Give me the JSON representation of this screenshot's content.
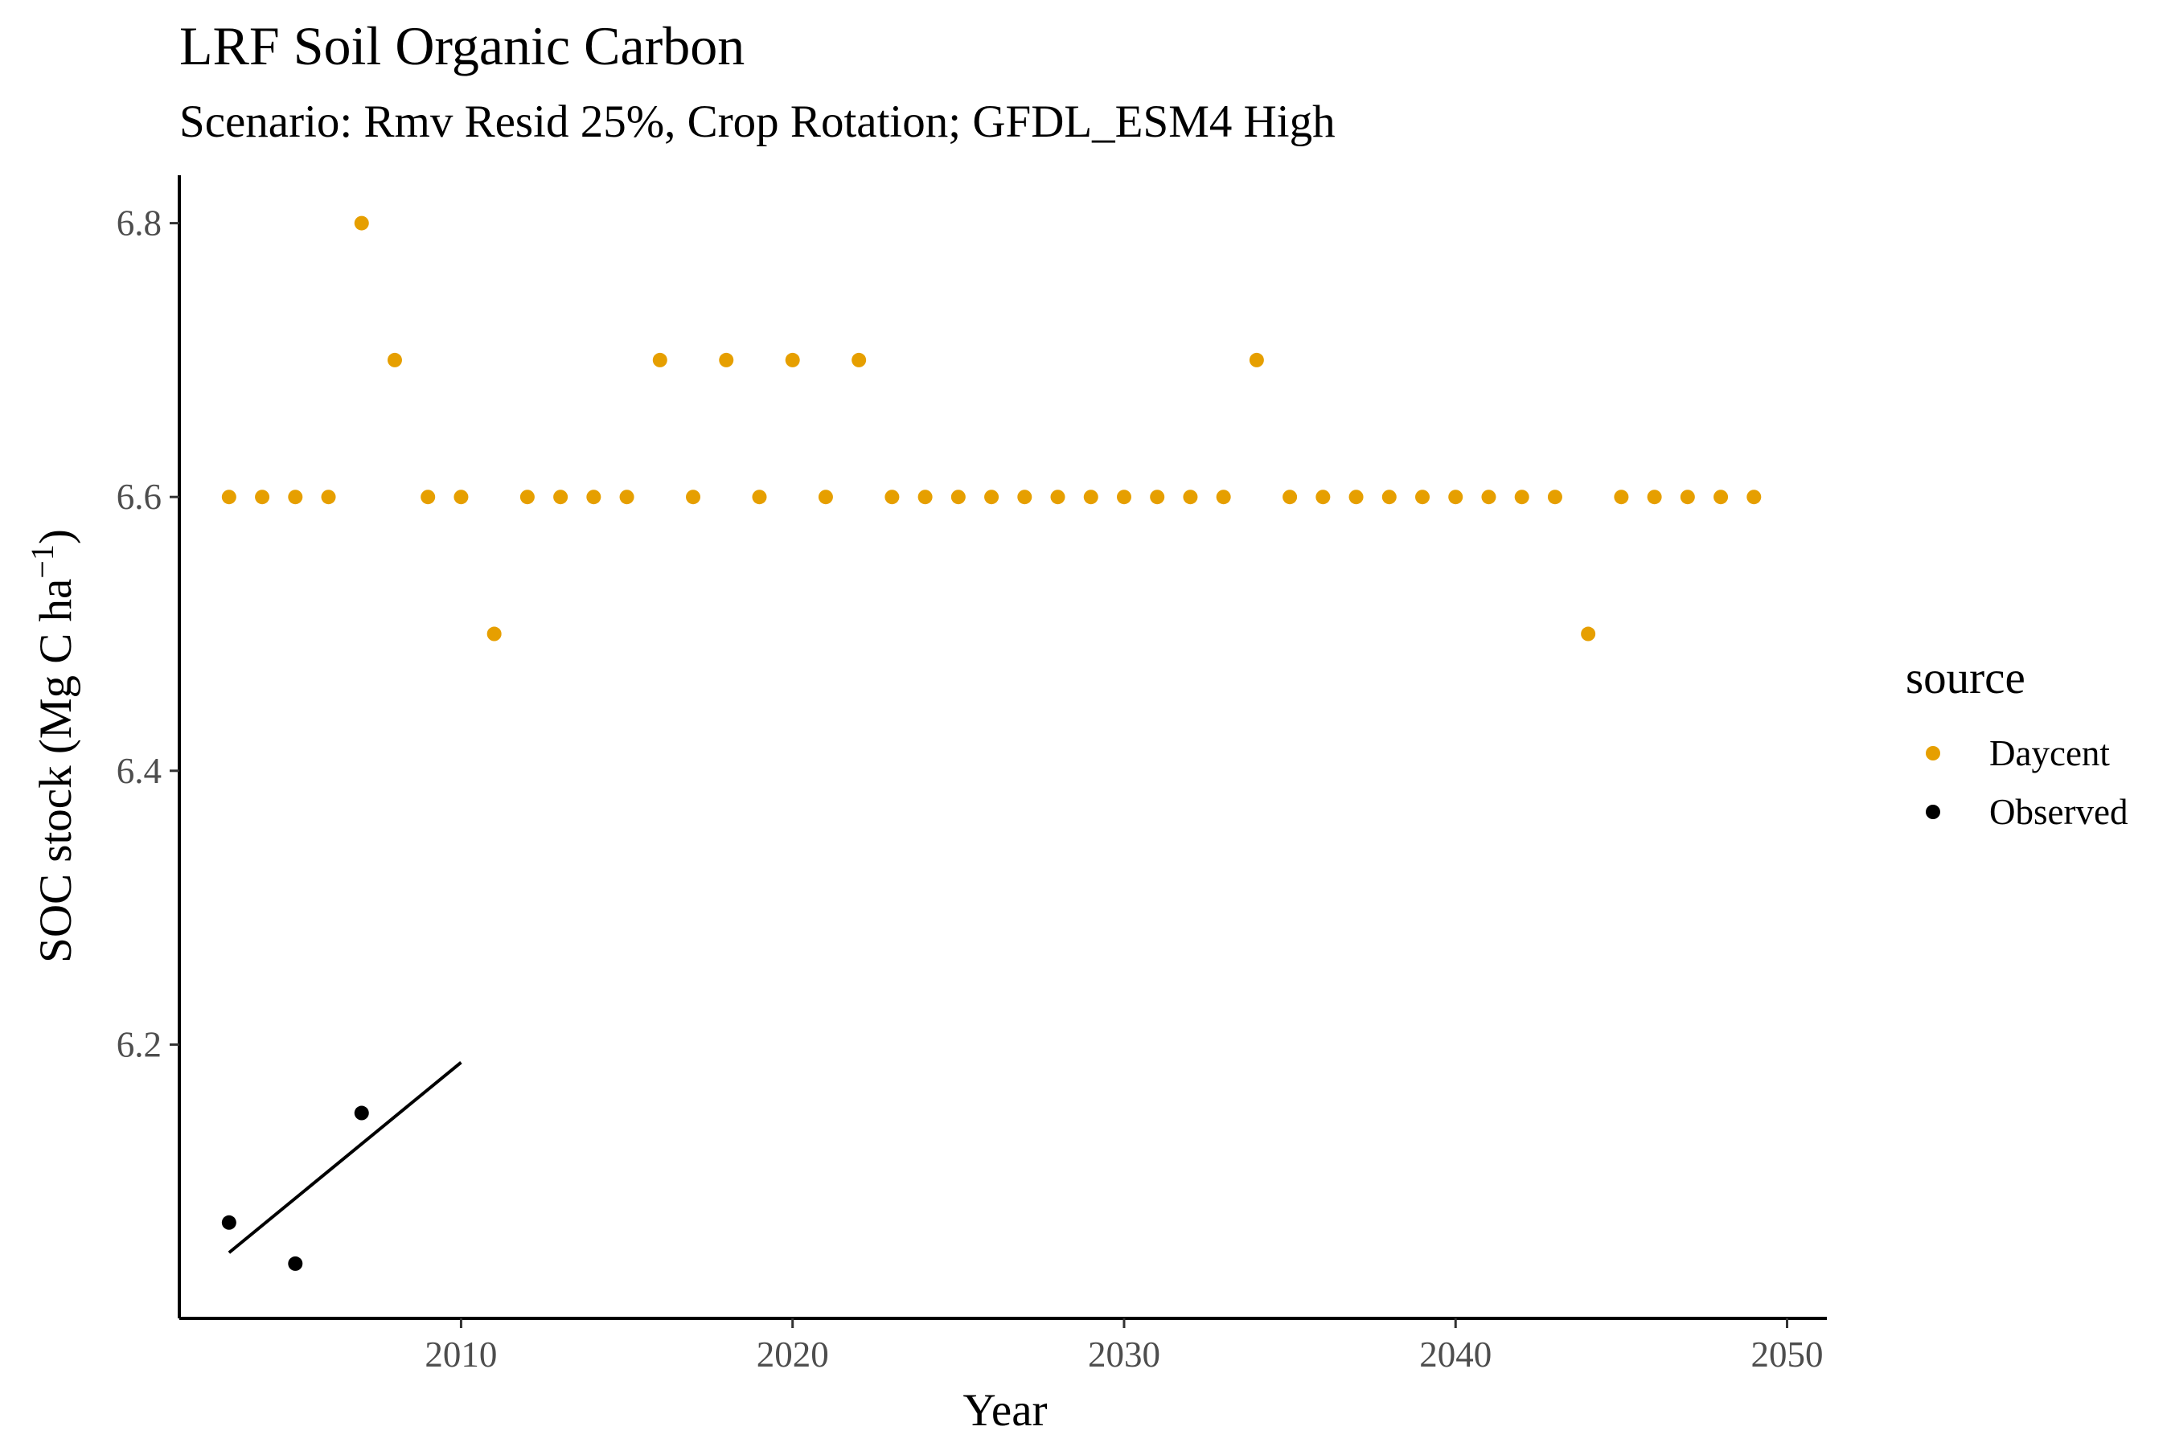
{
  "chart_data": {
    "type": "scatter",
    "title": "LRF Soil Organic Carbon",
    "subtitle": "Scenario: Rmv Resid 25%, Crop Rotation; GFDL_ESM4 High",
    "xlabel": "Year",
    "ylabel_main": "SOC stock (Mg C ha",
    "ylabel_sup": "−1",
    "ylabel_close": ")",
    "xlim": [
      2001.5,
      2051.2
    ],
    "ylim": [
      6.0,
      6.835
    ],
    "xticks": [
      2010,
      2020,
      2030,
      2040,
      2050
    ],
    "yticks": [
      6.2,
      6.4,
      6.6,
      6.8
    ],
    "xtick_labels": [
      "2010",
      "2020",
      "2030",
      "2040",
      "2050"
    ],
    "ytick_labels": [
      "6.2",
      "6.4",
      "6.6",
      "6.8"
    ],
    "grid": false,
    "legend": {
      "title": "source",
      "position": "right",
      "entries": [
        "Daycent",
        "Observed"
      ]
    },
    "series": [
      {
        "name": "Daycent",
        "color": "#E69F00",
        "x": [
          2003,
          2004,
          2005,
          2006,
          2007,
          2008,
          2009,
          2010,
          2011,
          2012,
          2013,
          2014,
          2015,
          2016,
          2017,
          2018,
          2019,
          2020,
          2021,
          2022,
          2023,
          2024,
          2025,
          2026,
          2027,
          2028,
          2029,
          2030,
          2031,
          2032,
          2033,
          2034,
          2035,
          2036,
          2037,
          2038,
          2039,
          2040,
          2041,
          2042,
          2043,
          2044,
          2045,
          2046,
          2047,
          2048,
          2049
        ],
        "y": [
          6.6,
          6.6,
          6.6,
          6.6,
          6.8,
          6.7,
          6.6,
          6.6,
          6.5,
          6.6,
          6.6,
          6.6,
          6.6,
          6.7,
          6.6,
          6.7,
          6.6,
          6.7,
          6.6,
          6.7,
          6.6,
          6.6,
          6.6,
          6.6,
          6.6,
          6.6,
          6.6,
          6.6,
          6.6,
          6.6,
          6.6,
          6.7,
          6.6,
          6.6,
          6.6,
          6.6,
          6.6,
          6.6,
          6.6,
          6.6,
          6.6,
          6.5,
          6.6,
          6.6,
          6.6,
          6.6,
          6.6
        ]
      },
      {
        "name": "Observed",
        "color": "#000000",
        "x": [
          2003,
          2005,
          2007
        ],
        "y": [
          6.07,
          6.04,
          6.15
        ]
      }
    ],
    "trend_line": {
      "series": "Observed",
      "color": "#000000",
      "x": [
        2003,
        2010
      ],
      "y": [
        6.048,
        6.187
      ]
    }
  }
}
